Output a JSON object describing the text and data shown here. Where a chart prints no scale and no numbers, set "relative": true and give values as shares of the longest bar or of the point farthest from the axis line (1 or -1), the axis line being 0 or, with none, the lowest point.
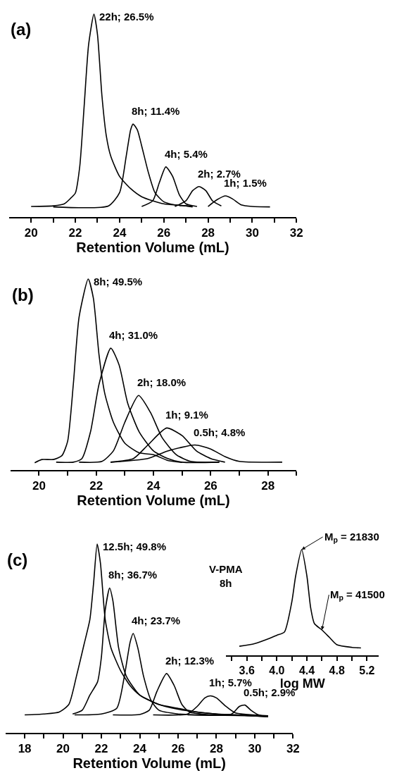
{
  "chart_data": [
    {
      "type": "line",
      "title": "(a)",
      "xlabel": "Retention Volume (mL)",
      "relative": true,
      "xlim": [
        19,
        32
      ],
      "xticks": [
        20,
        {
          "value": 21,
          "label": null
        },
        22,
        {
          "value": 23,
          "label": null
        },
        24,
        {
          "value": 25,
          "label": null
        },
        26,
        {
          "value": 27,
          "label": null
        },
        28,
        {
          "value": 29,
          "label": null
        },
        30,
        {
          "value": 31,
          "label": null
        },
        32
      ],
      "series": [
        {
          "color": "#000000",
          "x": [
            20.0,
            21.0,
            21.5,
            21.8,
            22.0,
            22.2,
            22.4,
            22.6,
            22.84,
            23.0,
            23.2,
            23.4,
            23.6,
            24.0,
            24.5,
            25.0,
            25.5,
            26.0,
            27.0,
            27.3
          ],
          "values": [
            0.052,
            0.055,
            0.065,
            0.094,
            0.118,
            0.25,
            0.55,
            0.85,
            1.0,
            0.9,
            0.6,
            0.4,
            0.3,
            0.2,
            0.14,
            0.1,
            0.08,
            0.065,
            0.055,
            0.052
          ]
        },
        {
          "color": "#000000",
          "x": [
            21.0,
            23.5,
            24.0,
            24.3,
            24.5,
            24.61,
            24.8,
            25.0,
            25.3,
            25.6,
            26.0,
            26.5,
            27.0,
            27.3
          ],
          "values": [
            0.05,
            0.055,
            0.12,
            0.3,
            0.43,
            0.458,
            0.43,
            0.35,
            0.22,
            0.12,
            0.075,
            0.06,
            0.055,
            0.05
          ]
        },
        {
          "color": "#000000",
          "x": [
            25.0,
            25.5,
            25.8,
            26.09,
            26.4,
            26.7,
            27.0,
            27.5
          ],
          "values": [
            0.052,
            0.08,
            0.17,
            0.247,
            0.2,
            0.11,
            0.065,
            0.052
          ]
        },
        {
          "color": "#000000",
          "x": [
            26.5,
            27.0,
            27.3,
            27.59,
            27.9,
            28.2,
            28.6
          ],
          "values": [
            0.052,
            0.08,
            0.13,
            0.15,
            0.13,
            0.08,
            0.055
          ]
        },
        {
          "color": "#000000",
          "x": [
            28.0,
            28.4,
            28.79,
            29.1,
            29.5,
            30.0,
            30.8
          ],
          "values": [
            0.052,
            0.085,
            0.104,
            0.09,
            0.06,
            0.052,
            0.05
          ]
        }
      ],
      "annotations": [
        {
          "text": "22h; 26.5%",
          "x": 22.84,
          "y": 1.0
        },
        {
          "text": "8h; 11.4%",
          "x": 24.61,
          "y": 0.458
        },
        {
          "text": "4h; 5.4%",
          "x": 26.09,
          "y": 0.247
        },
        {
          "text": "2h; 2.7%",
          "x": 27.59,
          "y": 0.15
        },
        {
          "text": "1h; 1.5%",
          "x": 28.79,
          "y": 0.104
        }
      ]
    },
    {
      "type": "line",
      "title": "(b)",
      "xlabel": "Retention Volume (mL)",
      "relative": true,
      "xlim": [
        19,
        29
      ],
      "xticks": [
        20,
        {
          "value": 21,
          "label": null
        },
        22,
        {
          "value": 23,
          "label": null
        },
        24,
        {
          "value": 25,
          "label": null
        },
        26,
        {
          "value": 27,
          "label": null
        },
        28,
        {
          "value": 29,
          "label": null
        }
      ],
      "series": [
        {
          "color": "#000000",
          "x": [
            19.85,
            20.1,
            20.5,
            20.8,
            21.0,
            21.2,
            21.4,
            21.72,
            21.9,
            22.1,
            22.3,
            22.6,
            23.0,
            23.5,
            24.0,
            24.5,
            25.0
          ],
          "values": [
            0.038,
            0.055,
            0.055,
            0.075,
            0.15,
            0.45,
            0.8,
            1.0,
            0.9,
            0.6,
            0.4,
            0.25,
            0.14,
            0.09,
            0.08,
            0.05,
            0.04
          ]
        },
        {
          "color": "#000000",
          "x": [
            20.6,
            21.2,
            21.5,
            21.8,
            22.1,
            22.51,
            22.8,
            23.1,
            23.5,
            24.0,
            24.5,
            25.0,
            26.3
          ],
          "values": [
            0.041,
            0.041,
            0.06,
            0.2,
            0.45,
            0.638,
            0.55,
            0.35,
            0.2,
            0.1,
            0.06,
            0.041,
            0.041
          ]
        },
        {
          "color": "#000000",
          "x": [
            21.4,
            22.2,
            22.6,
            23.0,
            23.48,
            23.9,
            24.3,
            24.8,
            25.3,
            26.3
          ],
          "values": [
            0.041,
            0.045,
            0.1,
            0.25,
            0.39,
            0.3,
            0.17,
            0.08,
            0.045,
            0.041
          ]
        },
        {
          "color": "#000000",
          "x": [
            22.5,
            23.3,
            23.8,
            24.46,
            25.0,
            25.5,
            26.0,
            26.5
          ],
          "values": [
            0.041,
            0.06,
            0.13,
            0.22,
            0.18,
            0.1,
            0.06,
            0.041
          ]
        },
        {
          "color": "#000000",
          "x": [
            22.5,
            23.8,
            24.5,
            25.45,
            26.0,
            26.5,
            27.0,
            28.5
          ],
          "values": [
            0.041,
            0.06,
            0.1,
            0.131,
            0.11,
            0.07,
            0.045,
            0.041
          ]
        }
      ],
      "annotations": [
        {
          "text": "8h; 49.5%",
          "x": 21.72,
          "y": 1.0
        },
        {
          "text": "4h; 31.0%",
          "x": 22.51,
          "y": 0.638
        },
        {
          "text": "2h; 18.0%",
          "x": 23.48,
          "y": 0.39
        },
        {
          "text": "1h; 9.1%",
          "x": 24.46,
          "y": 0.22
        },
        {
          "text": "0.5h; 4.8%",
          "x": 25.45,
          "y": 0.131
        }
      ]
    },
    {
      "type": "line",
      "title": "(c)",
      "xlabel": "Retention Volume (mL)",
      "relative": true,
      "xlim": [
        17,
        32
      ],
      "xticks": [
        18,
        {
          "value": 19,
          "label": null
        },
        20,
        {
          "value": 21,
          "label": null
        },
        22,
        {
          "value": 23,
          "label": null
        },
        24,
        {
          "value": 25,
          "label": null
        },
        26,
        {
          "value": 27,
          "label": null
        },
        28,
        {
          "value": 29,
          "label": null
        },
        30,
        {
          "value": 31,
          "label": null
        },
        32
      ],
      "series": [
        {
          "color": "#000000",
          "x": [
            18.0,
            19.0,
            19.8,
            20.3,
            20.7,
            21.1,
            21.4,
            21.6,
            21.78,
            21.95,
            22.2,
            22.5,
            23.0,
            23.5,
            24.0,
            25.0,
            26.0,
            27.0,
            28.0,
            29.0,
            30.0,
            30.7
          ],
          "values": [
            0.095,
            0.1,
            0.11,
            0.15,
            0.3,
            0.47,
            0.6,
            0.8,
            1.0,
            0.9,
            0.6,
            0.45,
            0.33,
            0.25,
            0.2,
            0.15,
            0.13,
            0.11,
            0.1,
            0.095,
            0.09,
            0.085
          ]
        },
        {
          "color": "#000000",
          "x": [
            20.5,
            21.0,
            21.4,
            21.8,
            22.0,
            22.2,
            22.43,
            22.6,
            22.9,
            23.3,
            24.0,
            25.0,
            26.0,
            27.0,
            28.0,
            29.0,
            30.7
          ],
          "values": [
            0.1,
            0.12,
            0.2,
            0.27,
            0.4,
            0.65,
            0.767,
            0.7,
            0.45,
            0.3,
            0.2,
            0.15,
            0.125,
            0.11,
            0.1,
            0.095,
            0.085
          ]
        },
        {
          "color": "#000000",
          "x": [
            20.6,
            22.0,
            22.8,
            23.2,
            23.5,
            23.66,
            23.9,
            24.2,
            24.6,
            25.0,
            26.0,
            27.0,
            30.7
          ],
          "values": [
            0.095,
            0.1,
            0.13,
            0.3,
            0.48,
            0.526,
            0.45,
            0.3,
            0.17,
            0.12,
            0.1,
            0.095,
            0.09
          ]
        },
        {
          "color": "#000000",
          "x": [
            22.6,
            24.0,
            24.5,
            24.9,
            25.4,
            25.8,
            26.2,
            26.6,
            27.5,
            30.7
          ],
          "values": [
            0.095,
            0.097,
            0.12,
            0.22,
            0.314,
            0.25,
            0.15,
            0.11,
            0.097,
            0.09
          ]
        },
        {
          "color": "#000000",
          "x": [
            24.7,
            26.5,
            27.0,
            27.4,
            27.68,
            28.0,
            28.5,
            29.0,
            30.7
          ],
          "values": [
            0.095,
            0.1,
            0.14,
            0.185,
            0.196,
            0.185,
            0.14,
            0.105,
            0.09
          ]
        },
        {
          "color": "#000000",
          "x": [
            26.5,
            28.8,
            29.2,
            29.49,
            29.8,
            30.2,
            30.7
          ],
          "values": [
            0.095,
            0.1,
            0.14,
            0.147,
            0.12,
            0.095,
            0.085
          ]
        }
      ],
      "annotations": [
        {
          "text": "12.5h; 49.8%",
          "x": 21.78,
          "y": 1.0
        },
        {
          "text": "8h; 36.7%",
          "x": 22.43,
          "y": 0.767
        },
        {
          "text": "4h; 23.7%",
          "x": 23.66,
          "y": 0.526
        },
        {
          "text": "2h; 12.3%",
          "x": 25.4,
          "y": 0.314
        },
        {
          "text": "1h; 5.7%",
          "x": 27.68,
          "y": 0.196
        },
        {
          "text": "0.5h; 2.9%",
          "x": 29.49,
          "y": 0.147
        }
      ]
    },
    {
      "type": "line",
      "xlabel": "log MW",
      "relative": true,
      "xlim": [
        3.32,
        5.36
      ],
      "xticks": [
        {
          "value": 3.4,
          "label": null
        },
        3.6,
        {
          "value": 3.8,
          "label": null
        },
        {
          "value": 4.0,
          "label": "4.0"
        },
        {
          "value": 4.2,
          "label": null
        },
        4.4,
        {
          "value": 4.6,
          "label": null
        },
        4.8,
        {
          "value": 5.0,
          "label": null
        },
        5.2
      ],
      "series": [
        {
          "color": "#000000",
          "x": [
            3.5,
            3.7,
            3.9,
            4.0,
            4.1,
            4.2,
            4.25,
            4.33,
            4.4,
            4.45,
            4.5,
            4.6,
            4.7,
            4.8,
            5.0,
            5.12
          ],
          "values": [
            0.086,
            0.11,
            0.16,
            0.19,
            0.22,
            0.51,
            0.75,
            1.0,
            0.75,
            0.45,
            0.3,
            0.24,
            0.17,
            0.1,
            0.075,
            0.07
          ]
        }
      ],
      "annotations": [
        "V-PMA\n8h",
        {
          "text": "M$_{p}$ = 21830",
          "x": 4.33,
          "y": 1.0
        },
        {
          "text": "M$_{p}$ = 41500",
          "x": 4.6,
          "y": 0.24
        }
      ]
    }
  ]
}
